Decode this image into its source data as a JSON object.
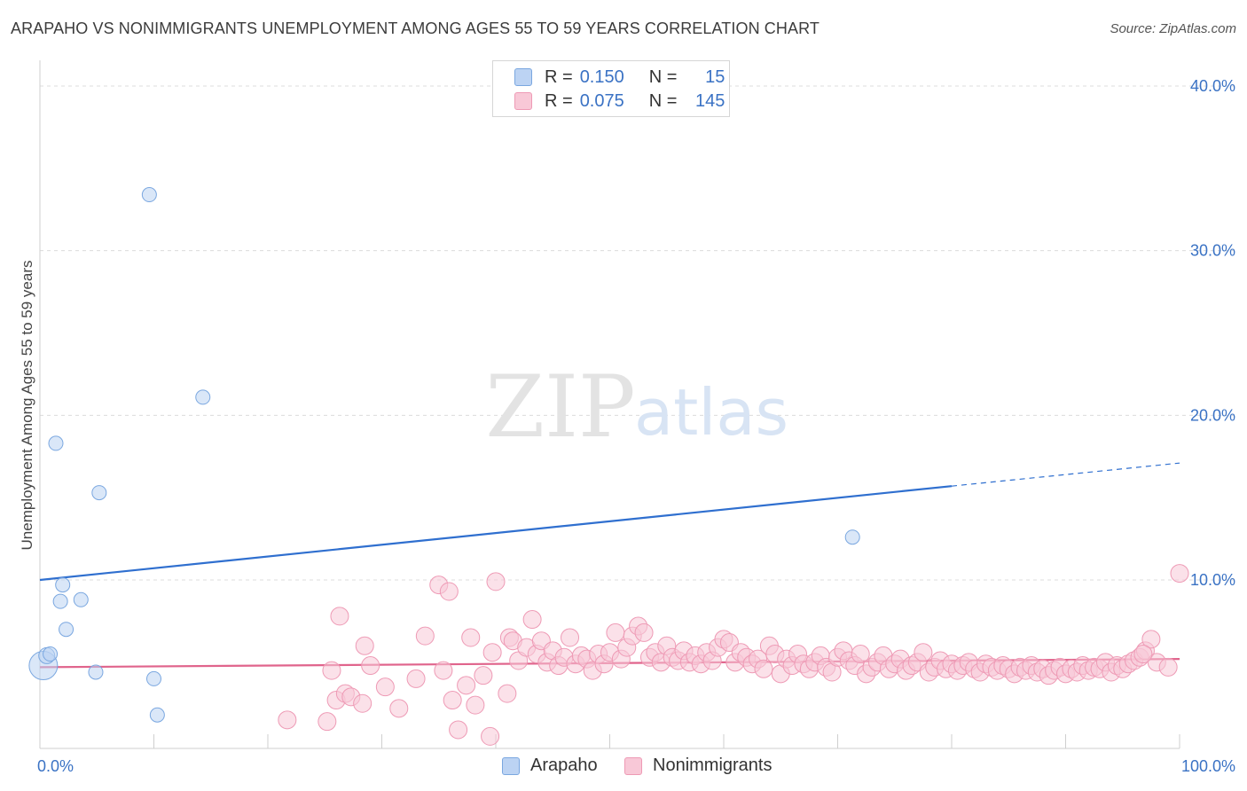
{
  "header": {
    "title": "ARAPAHO VS NONIMMIGRANTS UNEMPLOYMENT AMONG AGES 55 TO 59 YEARS CORRELATION CHART",
    "source": "Source: ZipAtlas.com"
  },
  "watermark": {
    "zip": "ZIP",
    "atlas": "atlas"
  },
  "legend": {
    "r_label": "R =",
    "n_label": "N =",
    "series": [
      {
        "name": "Arapaho",
        "r": "0.150",
        "n": "15",
        "color": "#7aa7e0",
        "fill": "#bcd3f3",
        "text_color": "#3a72c4"
      },
      {
        "name": "Nonimmigrants",
        "r": "0.075",
        "n": "145",
        "color": "#ee9ab5",
        "fill": "#f8c8d7",
        "text_color": "#3a72c4"
      }
    ]
  },
  "chart_data": {
    "type": "scatter",
    "title": "ARAPAHO VS NONIMMIGRANTS UNEMPLOYMENT AMONG AGES 55 TO 59 YEARS CORRELATION CHART",
    "xlabel": "",
    "ylabel": "Unemployment Among Ages 55 to 59 years",
    "xlim": [
      0,
      100
    ],
    "ylim": [
      0,
      40
    ],
    "x_tick_labels": [
      {
        "value": 0,
        "label": "0.0%"
      },
      {
        "value": 100,
        "label": "100.0%"
      }
    ],
    "y_tick_labels": [
      {
        "value": 10,
        "label": "10.0%"
      },
      {
        "value": 20,
        "label": "20.0%"
      },
      {
        "value": 30,
        "label": "30.0%"
      },
      {
        "value": 40,
        "label": "40.0%"
      }
    ],
    "grid": true,
    "series": [
      {
        "name": "Arapaho",
        "color": "#7aa7e0",
        "fill": "#bcd3f3",
        "points": [
          {
            "x": 0.3,
            "y": 4.8,
            "s": 16
          },
          {
            "x": 0.6,
            "y": 5.4,
            "s": 9
          },
          {
            "x": 0.9,
            "y": 5.5,
            "s": 8
          },
          {
            "x": 1.4,
            "y": 18.3,
            "s": 8
          },
          {
            "x": 1.8,
            "y": 8.7,
            "s": 8
          },
          {
            "x": 2.0,
            "y": 9.7,
            "s": 8
          },
          {
            "x": 2.3,
            "y": 7.0,
            "s": 8
          },
          {
            "x": 3.6,
            "y": 8.8,
            "s": 8
          },
          {
            "x": 4.9,
            "y": 4.4,
            "s": 8
          },
          {
            "x": 5.2,
            "y": 15.3,
            "s": 8
          },
          {
            "x": 9.6,
            "y": 33.4,
            "s": 8
          },
          {
            "x": 10.0,
            "y": 4.0,
            "s": 8
          },
          {
            "x": 10.3,
            "y": 1.8,
            "s": 8
          },
          {
            "x": 14.3,
            "y": 21.1,
            "s": 8
          },
          {
            "x": 71.3,
            "y": 12.6,
            "s": 8
          }
        ],
        "trend": {
          "x0": 0,
          "y0": 10.0,
          "x1": 80,
          "y1": 15.7,
          "dash_to_x": 100,
          "dash_to_y": 17.1
        }
      },
      {
        "name": "Nonimmigrants",
        "color": "#ee9ab5",
        "fill": "#f8c8d7",
        "points": [
          {
            "x": 21.7,
            "y": 1.5
          },
          {
            "x": 25.2,
            "y": 1.4
          },
          {
            "x": 25.6,
            "y": 4.5
          },
          {
            "x": 26.0,
            "y": 2.7
          },
          {
            "x": 26.3,
            "y": 7.8
          },
          {
            "x": 26.8,
            "y": 3.1
          },
          {
            "x": 27.3,
            "y": 2.9
          },
          {
            "x": 28.3,
            "y": 2.5
          },
          {
            "x": 28.5,
            "y": 6.0
          },
          {
            "x": 29.0,
            "y": 4.8
          },
          {
            "x": 30.3,
            "y": 3.5
          },
          {
            "x": 31.5,
            "y": 2.2
          },
          {
            "x": 33.0,
            "y": 4.0
          },
          {
            "x": 33.8,
            "y": 6.6
          },
          {
            "x": 35.0,
            "y": 9.7
          },
          {
            "x": 35.4,
            "y": 4.5
          },
          {
            "x": 35.9,
            "y": 9.3
          },
          {
            "x": 36.2,
            "y": 2.7
          },
          {
            "x": 36.7,
            "y": 0.9
          },
          {
            "x": 37.4,
            "y": 3.6
          },
          {
            "x": 37.8,
            "y": 6.5
          },
          {
            "x": 38.2,
            "y": 2.4
          },
          {
            "x": 38.9,
            "y": 4.2
          },
          {
            "x": 39.5,
            "y": 0.5
          },
          {
            "x": 39.7,
            "y": 5.6
          },
          {
            "x": 40.0,
            "y": 9.9
          },
          {
            "x": 41.0,
            "y": 3.1
          },
          {
            "x": 41.2,
            "y": 6.5
          },
          {
            "x": 41.5,
            "y": 6.3
          },
          {
            "x": 42.0,
            "y": 5.1
          },
          {
            "x": 42.7,
            "y": 5.9
          },
          {
            "x": 43.2,
            "y": 7.6
          },
          {
            "x": 43.6,
            "y": 5.5
          },
          {
            "x": 44.0,
            "y": 6.3
          },
          {
            "x": 44.5,
            "y": 5.0
          },
          {
            "x": 45.0,
            "y": 5.7
          },
          {
            "x": 45.5,
            "y": 4.8
          },
          {
            "x": 46.0,
            "y": 5.3
          },
          {
            "x": 46.5,
            "y": 6.5
          },
          {
            "x": 47.0,
            "y": 4.9
          },
          {
            "x": 47.5,
            "y": 5.4
          },
          {
            "x": 48.0,
            "y": 5.2
          },
          {
            "x": 48.5,
            "y": 4.5
          },
          {
            "x": 49.0,
            "y": 5.5
          },
          {
            "x": 49.5,
            "y": 4.9
          },
          {
            "x": 50.0,
            "y": 5.6
          },
          {
            "x": 50.5,
            "y": 6.8
          },
          {
            "x": 51.0,
            "y": 5.2
          },
          {
            "x": 51.5,
            "y": 5.9
          },
          {
            "x": 52.0,
            "y": 6.6
          },
          {
            "x": 52.5,
            "y": 7.2
          },
          {
            "x": 53.0,
            "y": 6.8
          },
          {
            "x": 53.5,
            "y": 5.3
          },
          {
            "x": 54.0,
            "y": 5.6
          },
          {
            "x": 54.5,
            "y": 5.0
          },
          {
            "x": 55.0,
            "y": 6.0
          },
          {
            "x": 55.5,
            "y": 5.3
          },
          {
            "x": 56.0,
            "y": 5.1
          },
          {
            "x": 56.5,
            "y": 5.7
          },
          {
            "x": 57.0,
            "y": 5.0
          },
          {
            "x": 57.5,
            "y": 5.4
          },
          {
            "x": 58.0,
            "y": 4.9
          },
          {
            "x": 58.5,
            "y": 5.6
          },
          {
            "x": 59.0,
            "y": 5.1
          },
          {
            "x": 59.5,
            "y": 5.9
          },
          {
            "x": 60.0,
            "y": 6.4
          },
          {
            "x": 60.5,
            "y": 6.2
          },
          {
            "x": 61.0,
            "y": 5.0
          },
          {
            "x": 61.5,
            "y": 5.6
          },
          {
            "x": 62.0,
            "y": 5.3
          },
          {
            "x": 62.5,
            "y": 4.9
          },
          {
            "x": 63.0,
            "y": 5.2
          },
          {
            "x": 63.5,
            "y": 4.6
          },
          {
            "x": 64.0,
            "y": 6.0
          },
          {
            "x": 64.5,
            "y": 5.5
          },
          {
            "x": 65.0,
            "y": 4.3
          },
          {
            "x": 65.5,
            "y": 5.2
          },
          {
            "x": 66.0,
            "y": 4.8
          },
          {
            "x": 66.5,
            "y": 5.5
          },
          {
            "x": 67.0,
            "y": 4.9
          },
          {
            "x": 67.5,
            "y": 4.6
          },
          {
            "x": 68.0,
            "y": 5.0
          },
          {
            "x": 68.5,
            "y": 5.4
          },
          {
            "x": 69.0,
            "y": 4.7
          },
          {
            "x": 69.5,
            "y": 4.4
          },
          {
            "x": 70.0,
            "y": 5.3
          },
          {
            "x": 70.5,
            "y": 5.7
          },
          {
            "x": 71.0,
            "y": 5.1
          },
          {
            "x": 71.5,
            "y": 4.8
          },
          {
            "x": 72.0,
            "y": 5.5
          },
          {
            "x": 72.5,
            "y": 4.3
          },
          {
            "x": 73.0,
            "y": 4.7
          },
          {
            "x": 73.5,
            "y": 5.0
          },
          {
            "x": 74.0,
            "y": 5.4
          },
          {
            "x": 74.5,
            "y": 4.6
          },
          {
            "x": 75.0,
            "y": 4.9
          },
          {
            "x": 75.5,
            "y": 5.2
          },
          {
            "x": 76.0,
            "y": 4.5
          },
          {
            "x": 76.5,
            "y": 4.8
          },
          {
            "x": 77.0,
            "y": 5.0
          },
          {
            "x": 77.5,
            "y": 5.6
          },
          {
            "x": 78.0,
            "y": 4.4
          },
          {
            "x": 78.5,
            "y": 4.7
          },
          {
            "x": 79.0,
            "y": 5.1
          },
          {
            "x": 79.5,
            "y": 4.6
          },
          {
            "x": 80.0,
            "y": 4.9
          },
          {
            "x": 80.5,
            "y": 4.5
          },
          {
            "x": 81.0,
            "y": 4.8
          },
          {
            "x": 81.5,
            "y": 5.0
          },
          {
            "x": 82.0,
            "y": 4.6
          },
          {
            "x": 82.5,
            "y": 4.4
          },
          {
            "x": 83.0,
            "y": 4.9
          },
          {
            "x": 83.5,
            "y": 4.7
          },
          {
            "x": 84.0,
            "y": 4.5
          },
          {
            "x": 84.5,
            "y": 4.8
          },
          {
            "x": 85.0,
            "y": 4.6
          },
          {
            "x": 85.5,
            "y": 4.3
          },
          {
            "x": 86.0,
            "y": 4.7
          },
          {
            "x": 86.5,
            "y": 4.5
          },
          {
            "x": 87.0,
            "y": 4.8
          },
          {
            "x": 87.5,
            "y": 4.4
          },
          {
            "x": 88.0,
            "y": 4.6
          },
          {
            "x": 88.5,
            "y": 4.2
          },
          {
            "x": 89.0,
            "y": 4.5
          },
          {
            "x": 89.5,
            "y": 4.7
          },
          {
            "x": 90.0,
            "y": 4.3
          },
          {
            "x": 90.5,
            "y": 4.6
          },
          {
            "x": 91.0,
            "y": 4.4
          },
          {
            "x": 91.5,
            "y": 4.8
          },
          {
            "x": 92.0,
            "y": 4.5
          },
          {
            "x": 92.5,
            "y": 4.7
          },
          {
            "x": 93.0,
            "y": 4.6
          },
          {
            "x": 93.5,
            "y": 5.0
          },
          {
            "x": 94.0,
            "y": 4.4
          },
          {
            "x": 94.5,
            "y": 4.8
          },
          {
            "x": 95.0,
            "y": 4.6
          },
          {
            "x": 95.5,
            "y": 4.9
          },
          {
            "x": 96.0,
            "y": 5.1
          },
          {
            "x": 96.5,
            "y": 5.3
          },
          {
            "x": 97.0,
            "y": 5.7
          },
          {
            "x": 97.5,
            "y": 6.4
          },
          {
            "x": 100.0,
            "y": 10.4
          },
          {
            "x": 98.0,
            "y": 5.0
          },
          {
            "x": 99.0,
            "y": 4.7
          },
          {
            "x": 96.8,
            "y": 5.5
          }
        ],
        "trend": {
          "x0": 0,
          "y0": 4.7,
          "x1": 100,
          "y1": 5.2
        }
      }
    ]
  }
}
